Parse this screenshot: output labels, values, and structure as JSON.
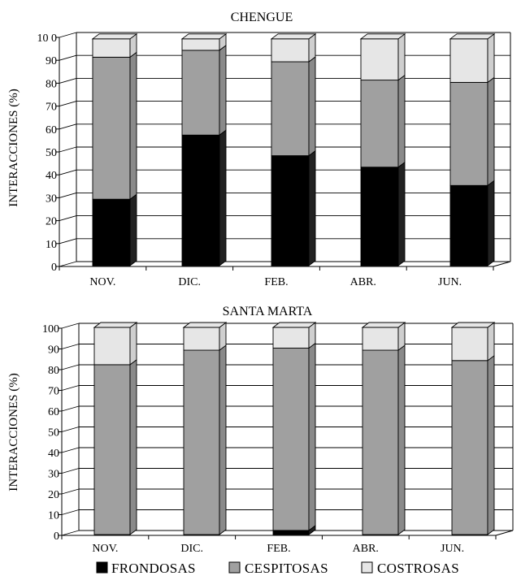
{
  "chart_data": [
    {
      "type": "bar",
      "stacked": true,
      "title": "CHENGUE",
      "ylabel": "INTERACCIONES (%)",
      "ylim": [
        0,
        100
      ],
      "yticks": [
        "0",
        "10",
        "20",
        "30",
        "40",
        "50",
        "60",
        "70",
        "80",
        "90",
        "10 0"
      ],
      "grid": true,
      "categories": [
        "NOV.",
        "DIC.",
        "FEB.",
        "ABR.",
        "JUN."
      ],
      "series": [
        {
          "name": "FRONDOSAS",
          "values": [
            29,
            57,
            48,
            43,
            35
          ]
        },
        {
          "name": "CESPITOSAS",
          "values": [
            62,
            37,
            41,
            38,
            45
          ]
        },
        {
          "name": "COSTROSAS",
          "values": [
            8,
            5,
            10,
            18,
            19
          ]
        }
      ]
    },
    {
      "type": "bar",
      "stacked": true,
      "title": "SANTA MARTA",
      "ylabel": "INTERACCIONES (%)",
      "ylim": [
        0,
        100
      ],
      "yticks": [
        "0",
        "10",
        "20",
        "30",
        "40",
        "50",
        "60",
        "70",
        "80",
        "90",
        "100"
      ],
      "grid": true,
      "categories": [
        "NOV.",
        "DIC.",
        "FEB.",
        "ABR.",
        "JUN."
      ],
      "series": [
        {
          "name": "FRONDOSAS",
          "values": [
            0,
            0,
            2,
            0,
            0
          ]
        },
        {
          "name": "CESPITOSAS",
          "values": [
            82,
            89,
            88,
            89,
            84
          ]
        },
        {
          "name": "COSTROSAS",
          "values": [
            18,
            11,
            10,
            11,
            16
          ]
        }
      ]
    }
  ],
  "legend": {
    "position": "bottom",
    "items": [
      {
        "label": "FRONDOSAS",
        "color": "#000000"
      },
      {
        "label": "CESPITOSAS",
        "color": "#a0a0a0"
      },
      {
        "label": "COSTROSAS",
        "color": "#e6e6e6"
      }
    ]
  },
  "colors": {
    "frondosas": "#000000",
    "cespitosas": "#a0a0a0",
    "costrosas": "#e6e6e6",
    "cespitosas_side": "#8a8a8a",
    "costrosas_side": "#cfcfcf",
    "frondosas_side": "#222222"
  }
}
